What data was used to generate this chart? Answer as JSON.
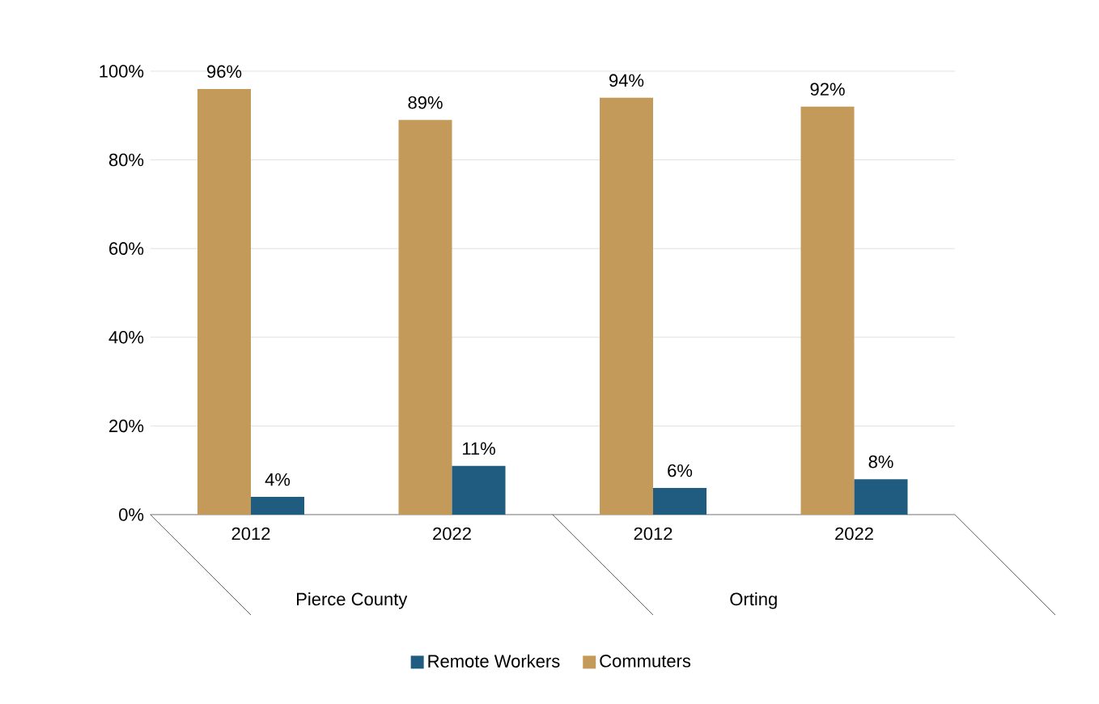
{
  "chart_data": {
    "type": "bar",
    "categories": [
      "2012",
      "2022",
      "2012",
      "2022"
    ],
    "series": [
      {
        "name": "Commuters",
        "color": "#c49a5a",
        "values": [
          96,
          89,
          94,
          92
        ],
        "value_labels": [
          "96%",
          "89%",
          "94%",
          "92%"
        ]
      },
      {
        "name": "Remote Workers",
        "color": "#1f5c7f",
        "values": [
          4,
          11,
          6,
          8
        ],
        "value_labels": [
          "4%",
          "11%",
          "6%",
          "8%"
        ]
      }
    ],
    "annotations": [
      "Pierce County",
      "Orting"
    ],
    "ylim": [
      0,
      100
    ],
    "yticks": [
      {
        "value": 0,
        "label": "0%"
      },
      {
        "value": 20,
        "label": "20%"
      },
      {
        "value": 40,
        "label": "40%"
      },
      {
        "value": 60,
        "label": "60%"
      },
      {
        "value": 80,
        "label": "80%"
      },
      {
        "value": 100,
        "label": "100%"
      }
    ],
    "grid": "y",
    "legend": "bottom"
  }
}
